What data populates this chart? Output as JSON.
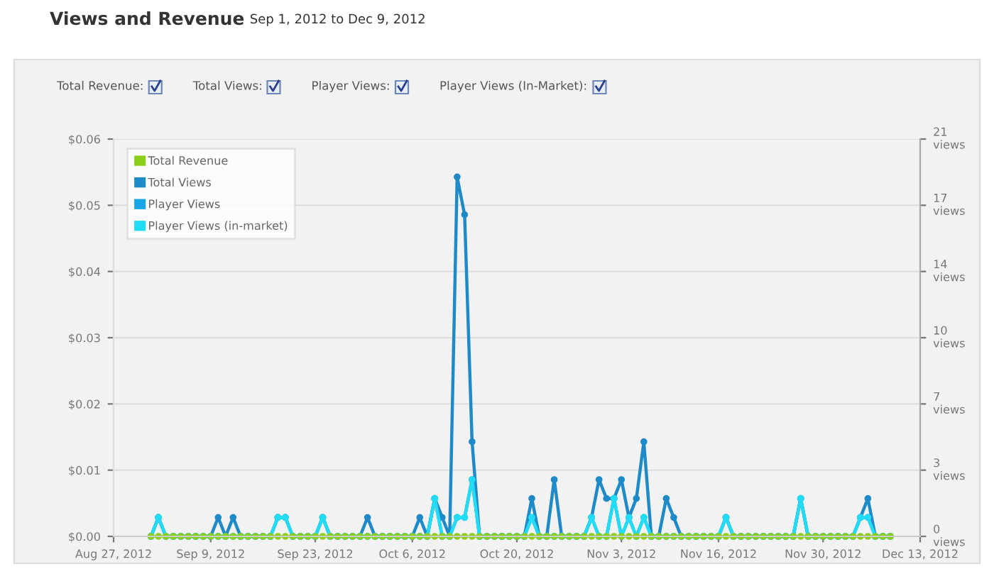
{
  "chart_data": {
    "type": "line",
    "title": "Views and Revenue",
    "subtitle": "Sep 1, 2012 to Dec 9, 2012",
    "annotations": [
      "Total Revenue:",
      "Total Views:",
      "Player Views:",
      "Player Views (In-Market):"
    ],
    "x": [
      "2012-09-01",
      "2012-09-02",
      "2012-09-03",
      "2012-09-04",
      "2012-09-05",
      "2012-09-06",
      "2012-09-07",
      "2012-09-08",
      "2012-09-09",
      "2012-09-10",
      "2012-09-11",
      "2012-09-12",
      "2012-09-13",
      "2012-09-14",
      "2012-09-15",
      "2012-09-16",
      "2012-09-17",
      "2012-09-18",
      "2012-09-19",
      "2012-09-20",
      "2012-09-21",
      "2012-09-22",
      "2012-09-23",
      "2012-09-24",
      "2012-09-25",
      "2012-09-26",
      "2012-09-27",
      "2012-09-28",
      "2012-09-29",
      "2012-09-30",
      "2012-10-01",
      "2012-10-02",
      "2012-10-03",
      "2012-10-04",
      "2012-10-05",
      "2012-10-06",
      "2012-10-07",
      "2012-10-08",
      "2012-10-09",
      "2012-10-10",
      "2012-10-11",
      "2012-10-12",
      "2012-10-13",
      "2012-10-14",
      "2012-10-15",
      "2012-10-16",
      "2012-10-17",
      "2012-10-18",
      "2012-10-19",
      "2012-10-20",
      "2012-10-21",
      "2012-10-22",
      "2012-10-23",
      "2012-10-24",
      "2012-10-25",
      "2012-10-26",
      "2012-10-27",
      "2012-10-28",
      "2012-10-29",
      "2012-10-30",
      "2012-10-31",
      "2012-11-01",
      "2012-11-02",
      "2012-11-03",
      "2012-11-04",
      "2012-11-05",
      "2012-11-06",
      "2012-11-07",
      "2012-11-08",
      "2012-11-09",
      "2012-11-10",
      "2012-11-11",
      "2012-11-12",
      "2012-11-13",
      "2012-11-14",
      "2012-11-15",
      "2012-11-16",
      "2012-11-17",
      "2012-11-18",
      "2012-11-19",
      "2012-11-20",
      "2012-11-21",
      "2012-11-22",
      "2012-11-23",
      "2012-11-24",
      "2012-11-25",
      "2012-11-26",
      "2012-11-27",
      "2012-11-28",
      "2012-11-29",
      "2012-11-30",
      "2012-12-01",
      "2012-12-02",
      "2012-12-03",
      "2012-12-04",
      "2012-12-05",
      "2012-12-06",
      "2012-12-07",
      "2012-12-08",
      "2012-12-09"
    ],
    "series": [
      {
        "name": "Total Revenue",
        "color": "#8ccf1a",
        "values": [
          0,
          0,
          0,
          0,
          0,
          0,
          0,
          0,
          0,
          0,
          0,
          0,
          0,
          0,
          0,
          0,
          0,
          0,
          0,
          0,
          0,
          0,
          0,
          0,
          0,
          0,
          0,
          0,
          0,
          0,
          0,
          0,
          0,
          0,
          0,
          0,
          0,
          0,
          0,
          0,
          0,
          0,
          0,
          0,
          0,
          0,
          0,
          0,
          0,
          0,
          0,
          0,
          0,
          0,
          0,
          0,
          0,
          0,
          0,
          0,
          0,
          0,
          0,
          0,
          0,
          0,
          0,
          0,
          0,
          0,
          0,
          0,
          0,
          0,
          0,
          0,
          0,
          0,
          0,
          0,
          0,
          0,
          0,
          0,
          0,
          0,
          0,
          0,
          0,
          0,
          0,
          0,
          0,
          0,
          0,
          0,
          0,
          0,
          0,
          0
        ]
      },
      {
        "name": "Total Views",
        "color": "#1f8ac8",
        "axis": "y2",
        "values": [
          0,
          1,
          0,
          0,
          0,
          0,
          0,
          0,
          0,
          1,
          0,
          1,
          0,
          0,
          0,
          0,
          0,
          1,
          1,
          0,
          0,
          0,
          0,
          1,
          0,
          0,
          0,
          0,
          0,
          1,
          0,
          0,
          0,
          0,
          0,
          0,
          1,
          0,
          2,
          1,
          0,
          19,
          17,
          5,
          0,
          0,
          0,
          0,
          0,
          0,
          0,
          2,
          0,
          0,
          3,
          0,
          0,
          0,
          0,
          1,
          3,
          2,
          2,
          3,
          1,
          2,
          5,
          0,
          0,
          2,
          1,
          0,
          0,
          0,
          0,
          0,
          0,
          1,
          0,
          0,
          0,
          0,
          0,
          0,
          0,
          0,
          0,
          2,
          0,
          0,
          0,
          0,
          0,
          0,
          0,
          1,
          2,
          0,
          0,
          0
        ]
      },
      {
        "name": "Player Views",
        "color": "#17a6e6",
        "axis": "y2",
        "values": [
          0,
          1,
          0,
          0,
          0,
          0,
          0,
          0,
          0,
          0,
          0,
          0,
          0,
          0,
          0,
          0,
          0,
          1,
          1,
          0,
          0,
          0,
          0,
          1,
          0,
          0,
          0,
          0,
          0,
          0,
          0,
          0,
          0,
          0,
          0,
          0,
          0,
          0,
          2,
          0,
          0,
          1,
          1,
          3,
          0,
          0,
          0,
          0,
          0,
          0,
          0,
          1,
          0,
          0,
          0,
          0,
          0,
          0,
          0,
          1,
          0,
          0,
          2,
          0,
          1,
          0,
          1,
          0,
          0,
          0,
          0,
          0,
          0,
          0,
          0,
          0,
          0,
          1,
          0,
          0,
          0,
          0,
          0,
          0,
          0,
          0,
          0,
          2,
          0,
          0,
          0,
          0,
          0,
          0,
          0,
          1,
          1,
          0,
          0,
          0
        ]
      },
      {
        "name": "Player Views (in-market)",
        "color": "#22dcf5",
        "axis": "y2",
        "values": [
          0,
          1,
          0,
          0,
          0,
          0,
          0,
          0,
          0,
          0,
          0,
          0,
          0,
          0,
          0,
          0,
          0,
          1,
          1,
          0,
          0,
          0,
          0,
          1,
          0,
          0,
          0,
          0,
          0,
          0,
          0,
          0,
          0,
          0,
          0,
          0,
          0,
          0,
          2,
          0,
          0,
          1,
          1,
          3,
          0,
          0,
          0,
          0,
          0,
          0,
          0,
          1,
          0,
          0,
          0,
          0,
          0,
          0,
          0,
          1,
          0,
          0,
          2,
          0,
          1,
          0,
          1,
          0,
          0,
          0,
          0,
          0,
          0,
          0,
          0,
          0,
          0,
          1,
          0,
          0,
          0,
          0,
          0,
          0,
          0,
          0,
          0,
          2,
          0,
          0,
          0,
          0,
          0,
          0,
          0,
          1,
          1,
          0,
          0,
          0
        ]
      }
    ],
    "xlim": [
      "2012-08-27",
      "2012-12-13"
    ],
    "xticks": [
      {
        "value": "2012-08-27",
        "label": "Aug 27, 2012"
      },
      {
        "value": "2012-09-09",
        "label": "Sep 9, 2012"
      },
      {
        "value": "2012-09-23",
        "label": "Sep 23, 2012"
      },
      {
        "value": "2012-10-06",
        "label": "Oct 6, 2012"
      },
      {
        "value": "2012-10-20",
        "label": "Oct 20, 2012"
      },
      {
        "value": "2012-11-03",
        "label": "Nov 3, 2012"
      },
      {
        "value": "2012-11-16",
        "label": "Nov 16, 2012"
      },
      {
        "value": "2012-11-30",
        "label": "Nov 30, 2012"
      },
      {
        "value": "2012-12-13",
        "label": "Dec 13, 2012"
      }
    ],
    "ylim": [
      0,
      0.06
    ],
    "yticks": [
      {
        "value": 0,
        "label": "$0.00"
      },
      {
        "value": 0.01,
        "label": "$0.01"
      },
      {
        "value": 0.02,
        "label": "$0.02"
      },
      {
        "value": 0.03,
        "label": "$0.03"
      },
      {
        "value": 0.04,
        "label": "$0.04"
      },
      {
        "value": 0.05,
        "label": "$0.05"
      },
      {
        "value": 0.06,
        "label": "$0.06"
      }
    ],
    "y2lim": [
      0,
      21
    ],
    "y2ticks": [
      {
        "value": 0,
        "label": "0\nviews"
      },
      {
        "value": 3.5,
        "label": "3\nviews"
      },
      {
        "value": 7,
        "label": "7\nviews"
      },
      {
        "value": 10.5,
        "label": "10\nviews"
      },
      {
        "value": 14,
        "label": "14\nviews"
      },
      {
        "value": 17.5,
        "label": "17\nviews"
      },
      {
        "value": 21,
        "label": "21\nviews"
      }
    ],
    "grid": true,
    "legend": "top left",
    "marker": "circle",
    "line_style": "solid"
  }
}
